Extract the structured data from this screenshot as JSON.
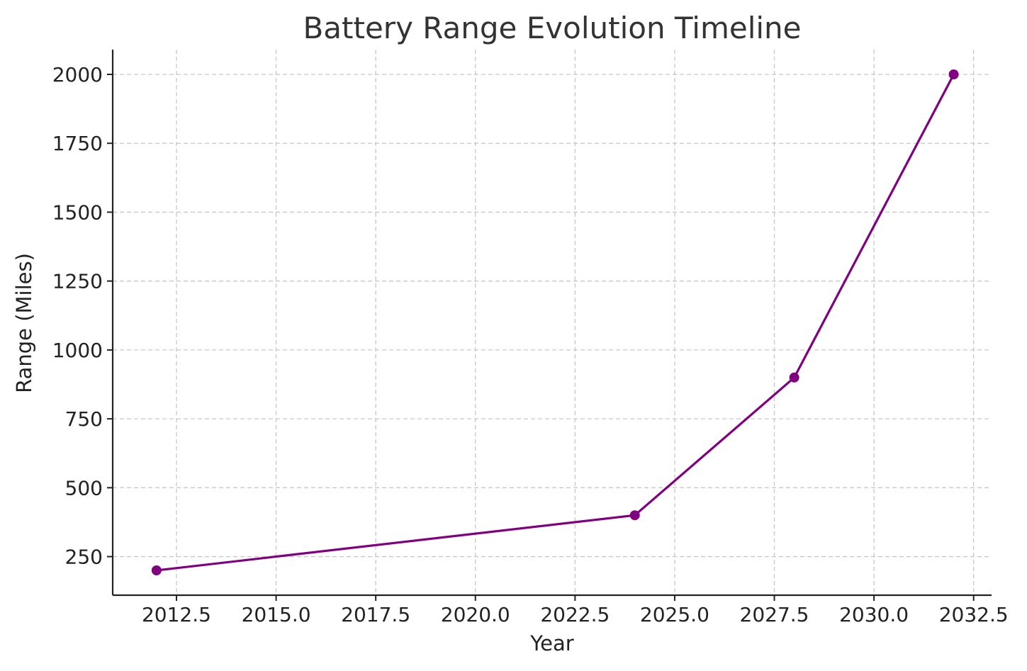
{
  "chart_data": {
    "type": "line",
    "title": "Battery Range Evolution Timeline",
    "xlabel": "Year",
    "ylabel": "Range (Miles)",
    "x": [
      2012,
      2024,
      2028,
      2032
    ],
    "series": [
      {
        "values": [
          200,
          400,
          900,
          2000
        ],
        "color": "#800080",
        "marker": "circle"
      }
    ],
    "xlim": [
      2010.9,
      2032.95
    ],
    "ylim": [
      110,
      2090
    ],
    "xticks": [
      2012.5,
      2015.0,
      2017.5,
      2020.0,
      2022.5,
      2025.0,
      2027.5,
      2030.0,
      2032.5
    ],
    "xtick_labels": [
      "2012.5",
      "2015.0",
      "2017.5",
      "2020.0",
      "2022.5",
      "2025.0",
      "2027.5",
      "2030.0",
      "2032.5"
    ],
    "yticks": [
      250,
      500,
      750,
      1000,
      1250,
      1500,
      1750,
      2000
    ],
    "ytick_labels": [
      "250",
      "500",
      "750",
      "1000",
      "1250",
      "1500",
      "1750",
      "2000"
    ],
    "grid": true,
    "legend": "none"
  }
}
